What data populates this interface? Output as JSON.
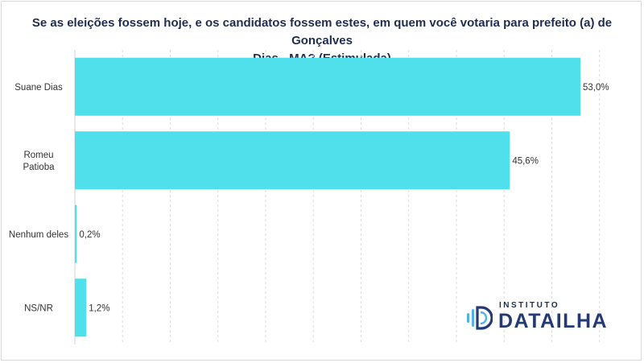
{
  "title_lines": [
    "Se as eleições fossem hoje, e os candidatos fossem estes, em quem você votaria para prefeito (a) de Gonçalves",
    "Dias - MA? (Estimulada)"
  ],
  "chart_data": {
    "type": "bar",
    "orientation": "horizontal",
    "categories": [
      [
        "Suane Dias"
      ],
      [
        "Romeu",
        "Patioba"
      ],
      [
        "Nenhum deles"
      ],
      [
        "NS/NR"
      ]
    ],
    "values": [
      53.0,
      45.6,
      0.2,
      1.2
    ],
    "value_labels": [
      "53,0%",
      "45,6%",
      "0,2%",
      "1,2%"
    ],
    "xlim": [
      0,
      55
    ],
    "grid": "vertical dashed",
    "bar_color": "#4fe0ec"
  },
  "brand": {
    "small": "INSTITUTO",
    "big": "DATAILHA",
    "color_dark": "#1f2d4f",
    "color_accent": "#4fb3e8"
  }
}
